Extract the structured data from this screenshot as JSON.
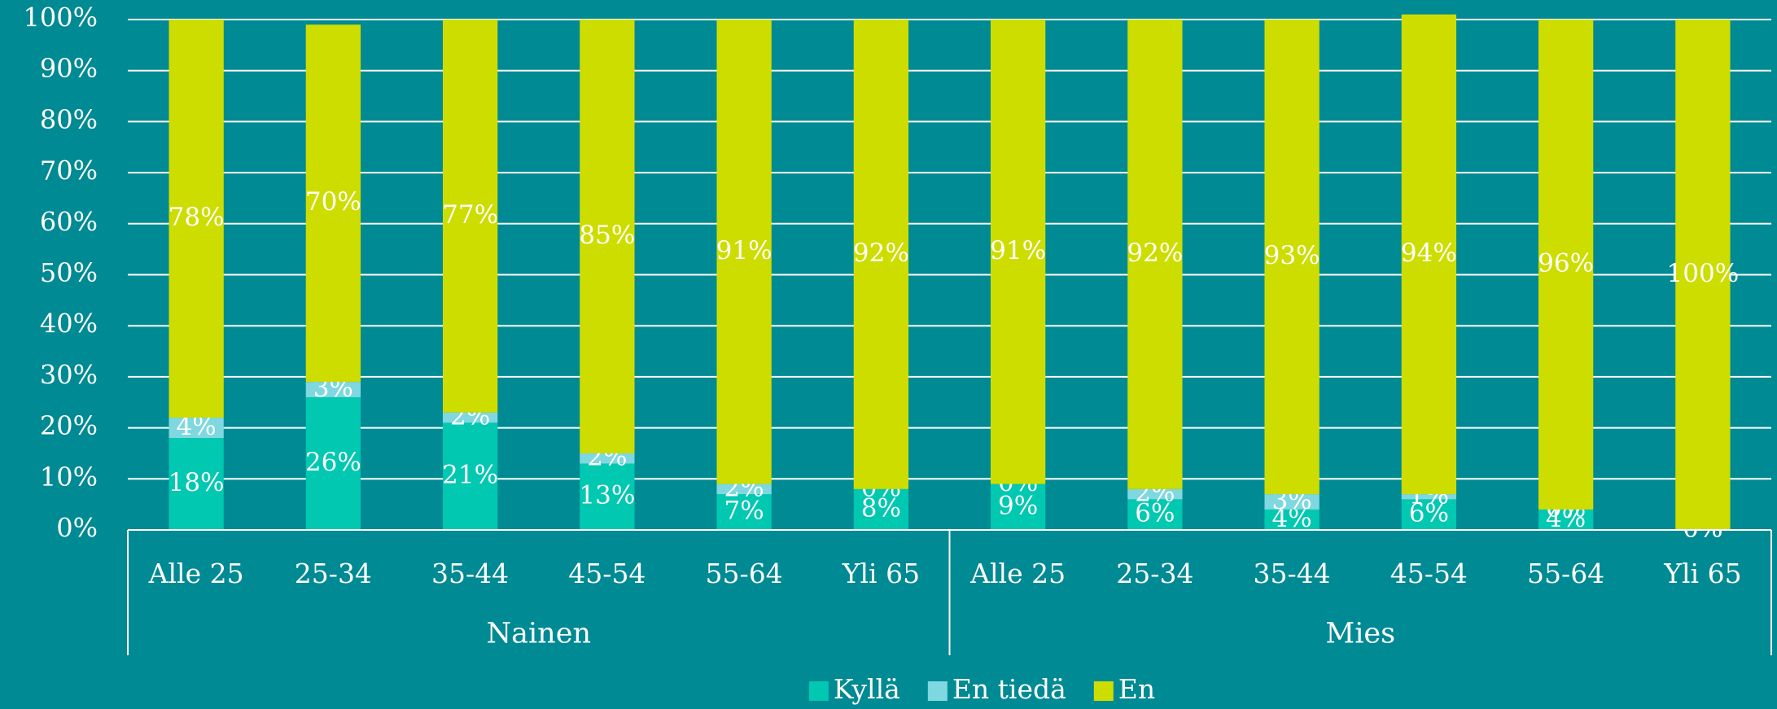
{
  "chart_data": {
    "type": "stacked_bar",
    "categories": [
      "Alle 25",
      "25-34",
      "35-44",
      "45-54",
      "55-64",
      "Yli 65",
      "Alle 25",
      "25-34",
      "35-44",
      "45-54",
      "55-64",
      "Yli 65"
    ],
    "groups": [
      "Nainen",
      "Mies"
    ],
    "series": [
      {
        "name": "Kyllä",
        "color": "#00c8b1",
        "values": [
          18,
          26,
          21,
          13,
          7,
          8,
          9,
          6,
          4,
          6,
          4,
          0
        ],
        "value_labels": [
          "18%",
          "26%",
          "21%",
          "13%",
          "7%",
          "8%",
          "9%",
          "6%",
          "4%",
          "6%",
          "4%",
          "0%"
        ]
      },
      {
        "name": "En tiedä",
        "color": "#7fd8e0",
        "values": [
          4,
          3,
          2,
          2,
          2,
          0,
          0,
          2,
          3,
          1,
          0,
          0
        ],
        "value_labels": [
          "4%",
          "3%",
          "2%",
          "2%",
          "2%",
          "0%",
          "0%",
          "2%",
          "3%",
          "1%",
          "0%",
          "0%"
        ]
      },
      {
        "name": "En",
        "color": "#cddd00",
        "values": [
          78,
          70,
          77,
          85,
          91,
          92,
          91,
          92,
          93,
          94,
          96,
          100
        ],
        "value_labels": [
          "78%",
          "70%",
          "77%",
          "85%",
          "91%",
          "92%",
          "91%",
          "92%",
          "93%",
          "94%",
          "96%",
          "100%"
        ]
      }
    ],
    "ylim": [
      0,
      100
    ],
    "yticks": [
      {
        "value": 0,
        "label": "0%"
      },
      {
        "value": 10,
        "label": "10%"
      },
      {
        "value": 20,
        "label": "20%"
      },
      {
        "value": 30,
        "label": "30%"
      },
      {
        "value": 40,
        "label": "40%"
      },
      {
        "value": 50,
        "label": "50%"
      },
      {
        "value": 60,
        "label": "60%"
      },
      {
        "value": 70,
        "label": "70%"
      },
      {
        "value": 80,
        "label": "80%"
      },
      {
        "value": 90,
        "label": "90%"
      },
      {
        "value": 100,
        "label": "100%"
      }
    ],
    "grid": true,
    "legend": "bottom"
  }
}
